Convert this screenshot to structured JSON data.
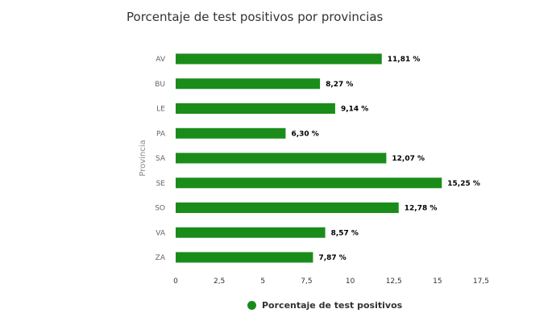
{
  "chart_data": {
    "type": "bar",
    "orientation": "horizontal",
    "title": "Porcentaje de test positivos por provincias",
    "ylabel": "Provincia",
    "xlabel": "",
    "categories": [
      "AV",
      "BU",
      "LE",
      "PA",
      "SA",
      "SE",
      "SO",
      "VA",
      "ZA"
    ],
    "series": [
      {
        "name": "Porcentaje de test positivos",
        "values": [
          11.81,
          8.27,
          9.14,
          6.3,
          12.07,
          15.25,
          12.78,
          8.57,
          7.87
        ],
        "labels": [
          "11,81 %",
          "8,27 %",
          "9,14 %",
          "6,30 %",
          "12,07 %",
          "15,25 %",
          "12,78 %",
          "8,57 %",
          "7,87 %"
        ]
      }
    ],
    "xlim": [
      0,
      17.5
    ],
    "xticks": [
      0,
      2.5,
      5,
      7.5,
      10,
      12.5,
      15,
      17.5
    ],
    "xtick_labels": [
      "0",
      "2,5",
      "5",
      "7,5",
      "10",
      "12,5",
      "15",
      "17,5"
    ],
    "grid": false,
    "legend_position": "bottom",
    "colors": {
      "bar": "#1a8c1a"
    }
  }
}
